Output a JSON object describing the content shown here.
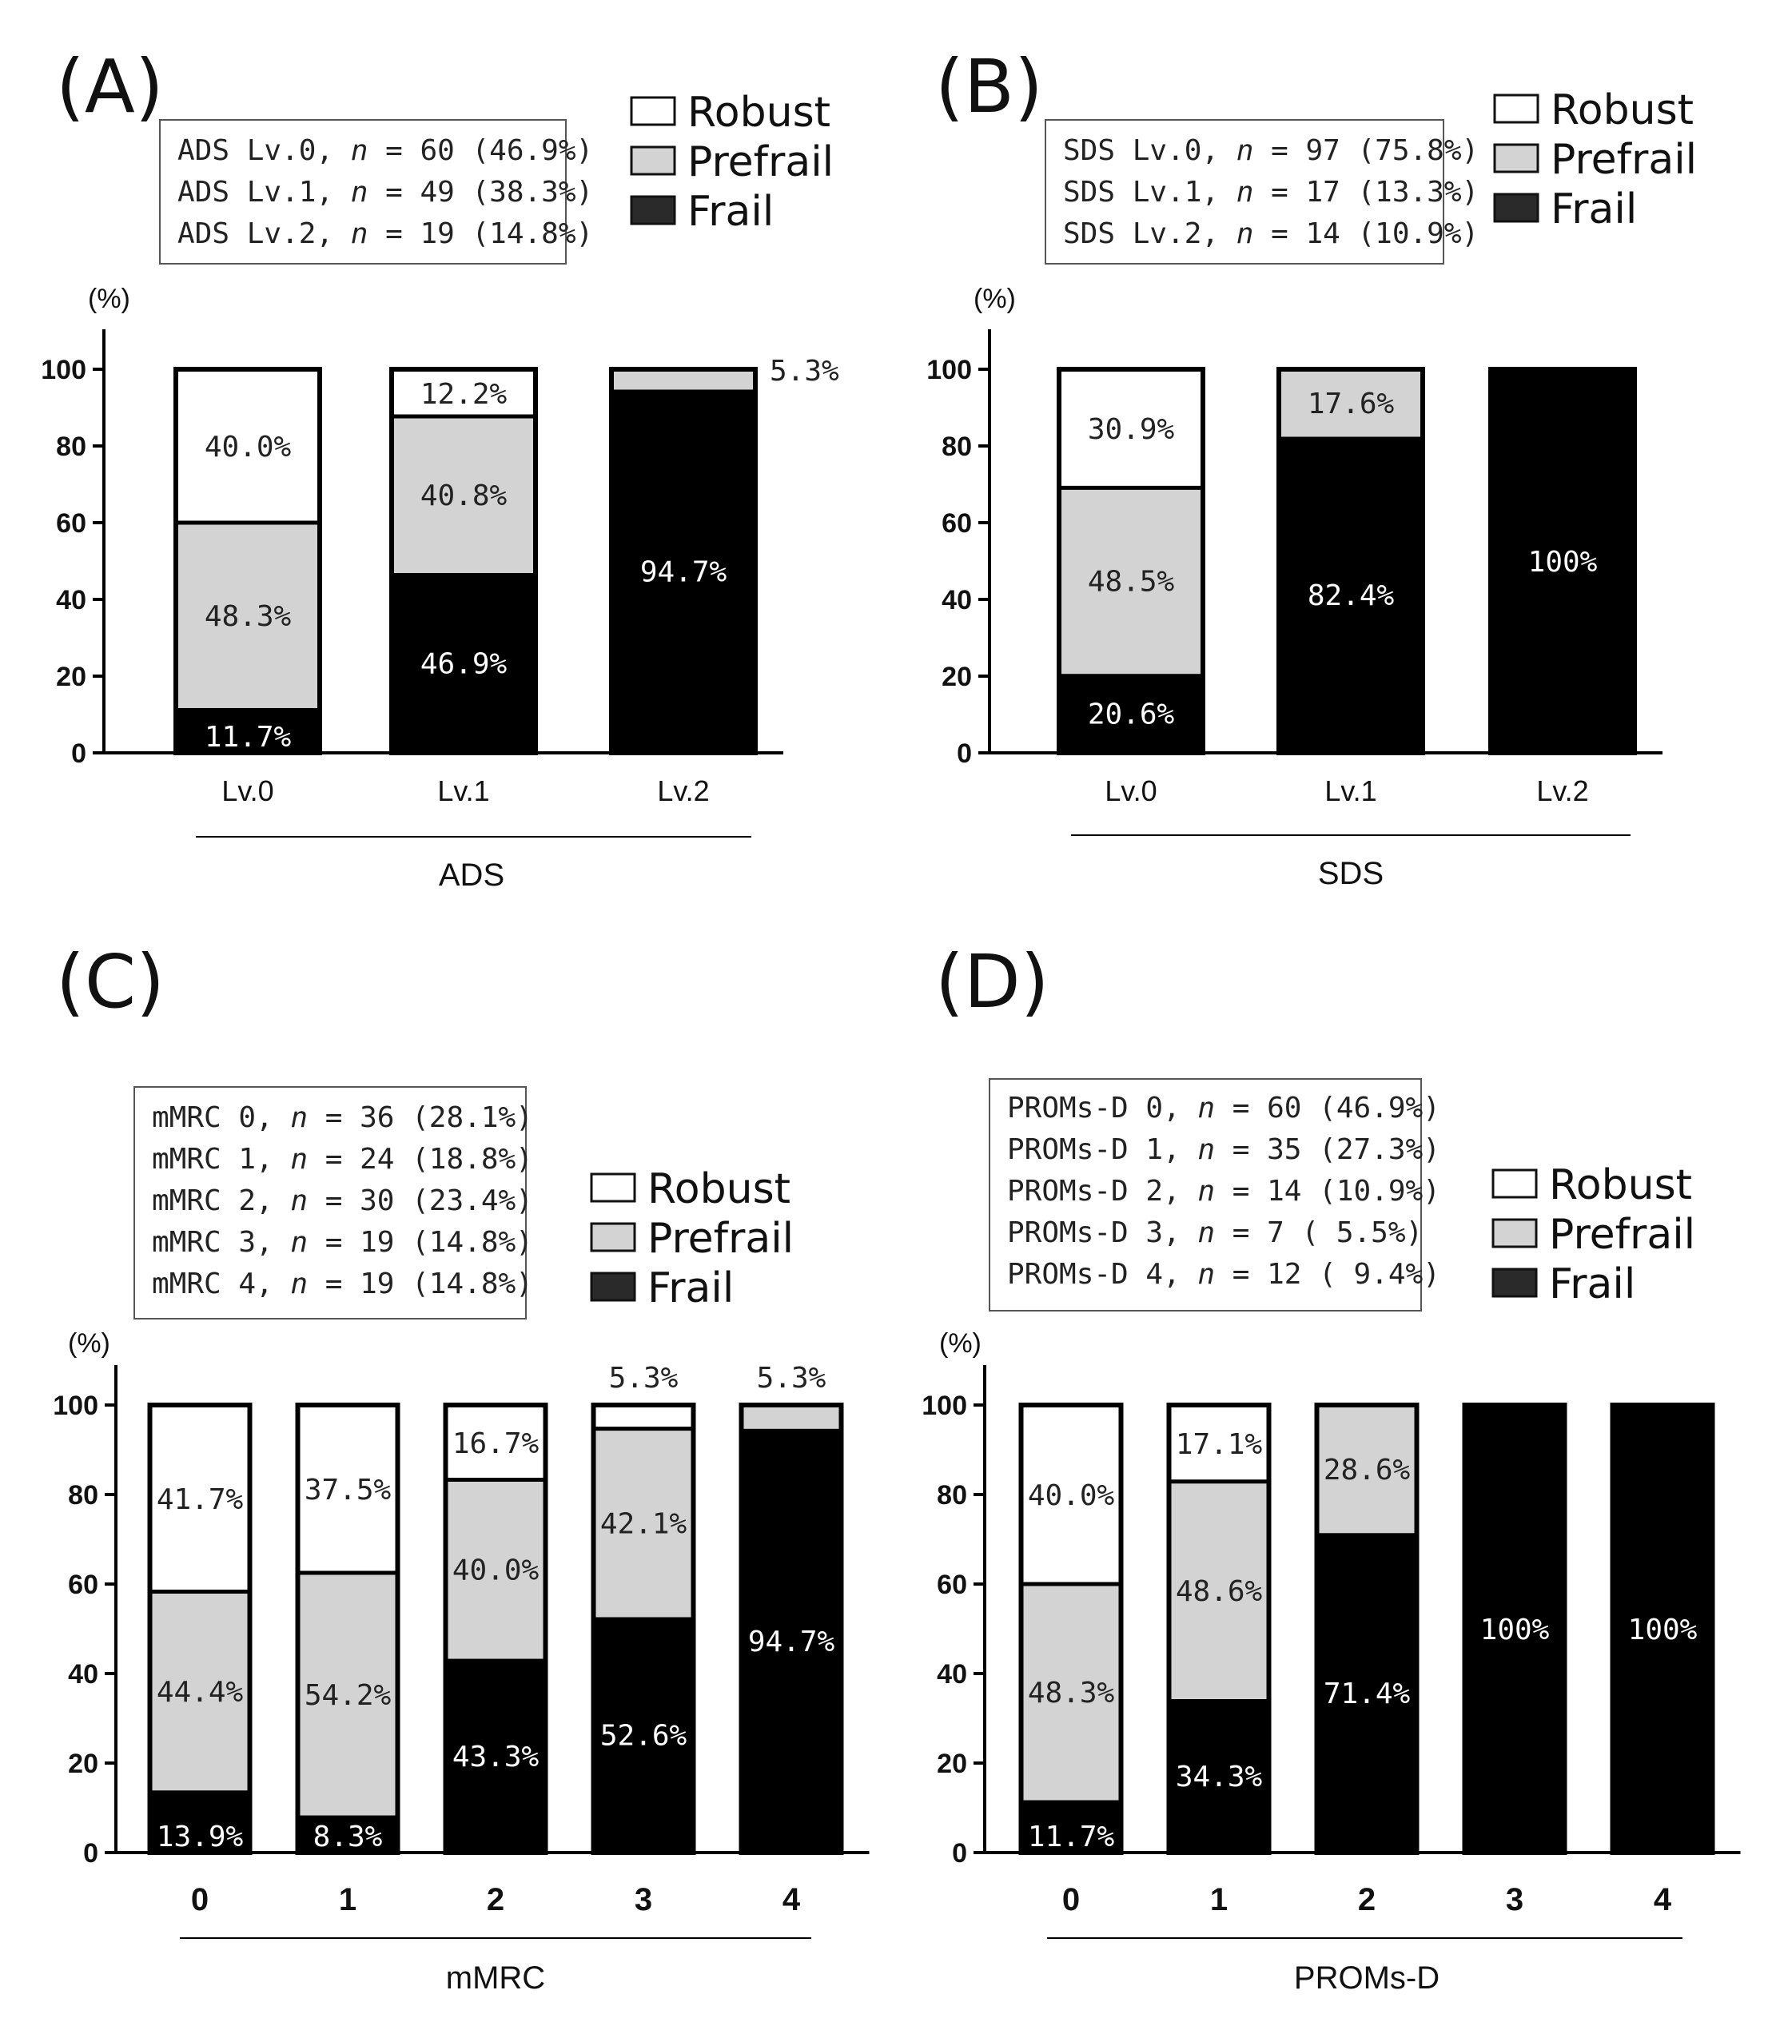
{
  "colors": {
    "robust": "#ffffff",
    "prefrail": "#d3d3d3",
    "frail": "#000000",
    "frame": "#000000"
  },
  "legend": {
    "robust": "Robust",
    "prefrail": "Prefrail",
    "frail": "Frail"
  },
  "y_unit": "(%)",
  "panels": [
    {
      "letter": "(A)",
      "info": [
        {
          "pre": "ADS Lv.0, ",
          "n": "n",
          "post": " = 60 (46.9%)"
        },
        {
          "pre": "ADS Lv.1, ",
          "n": "n",
          "post": " = 49 (38.3%)"
        },
        {
          "pre": "ADS Lv.2, ",
          "n": "n",
          "post": " = 19 (14.8%)"
        }
      ],
      "xlabel": "ADS"
    },
    {
      "letter": "(B)",
      "info": [
        {
          "pre": "SDS Lv.0, ",
          "n": "n",
          "post": " = 97 (75.8%)"
        },
        {
          "pre": "SDS Lv.1, ",
          "n": "n",
          "post": " = 17 (13.3%)"
        },
        {
          "pre": "SDS Lv.2, ",
          "n": "n",
          "post": " = 14 (10.9%)"
        }
      ],
      "xlabel": "SDS"
    },
    {
      "letter": "(C)",
      "info": [
        {
          "pre": "mMRC 0, ",
          "n": "n",
          "post": " = 36 (28.1%)"
        },
        {
          "pre": "mMRC 1, ",
          "n": "n",
          "post": " = 24 (18.8%)"
        },
        {
          "pre": "mMRC 2, ",
          "n": "n",
          "post": " = 30 (23.4%)"
        },
        {
          "pre": "mMRC 3, ",
          "n": "n",
          "post": " = 19 (14.8%)"
        },
        {
          "pre": "mMRC 4, ",
          "n": "n",
          "post": " = 19 (14.8%)"
        }
      ],
      "xlabel": "mMRC"
    },
    {
      "letter": "(D)",
      "info": [
        {
          "pre": "PROMs-D 0, ",
          "n": "n",
          "post": " = 60 (46.9%)"
        },
        {
          "pre": "PROMs-D 1, ",
          "n": "n",
          "post": " = 35 (27.3%)"
        },
        {
          "pre": "PROMs-D 2, ",
          "n": "n",
          "post": " = 14 (10.9%)"
        },
        {
          "pre": "PROMs-D 3, ",
          "n": "n",
          "post": " =  7 ( 5.5%)"
        },
        {
          "pre": "PROMs-D 4, ",
          "n": "n",
          "post": " = 12 ( 9.4%)"
        }
      ],
      "xlabel": "PROMs-D"
    }
  ],
  "chart_data": [
    {
      "type": "bar",
      "stacked": true,
      "title": "(A)",
      "xlabel": "ADS",
      "ylabel": "(%)",
      "ylim": [
        0,
        100
      ],
      "yticks": [
        0,
        20,
        40,
        60,
        80,
        100
      ],
      "categories": [
        "Lv.0",
        "Lv.1",
        "Lv.2"
      ],
      "series": [
        {
          "name": "Frail",
          "values": [
            11.7,
            46.9,
            94.7
          ],
          "labels": [
            "11.7%",
            "46.9%",
            "94.7%"
          ]
        },
        {
          "name": "Prefrail",
          "values": [
            48.3,
            40.8,
            5.3
          ],
          "labels": [
            "48.3%",
            "40.8%",
            "5.3%"
          ]
        },
        {
          "name": "Robust",
          "values": [
            40.0,
            12.2,
            0
          ],
          "labels": [
            "40.0%",
            "12.2%",
            ""
          ]
        }
      ]
    },
    {
      "type": "bar",
      "stacked": true,
      "title": "(B)",
      "xlabel": "SDS",
      "ylabel": "(%)",
      "ylim": [
        0,
        100
      ],
      "yticks": [
        0,
        20,
        40,
        60,
        80,
        100
      ],
      "categories": [
        "Lv.0",
        "Lv.1",
        "Lv.2"
      ],
      "series": [
        {
          "name": "Frail",
          "values": [
            20.6,
            82.4,
            100
          ],
          "labels": [
            "20.6%",
            "82.4%",
            "100%"
          ]
        },
        {
          "name": "Prefrail",
          "values": [
            48.5,
            17.6,
            0
          ],
          "labels": [
            "48.5%",
            "17.6%",
            ""
          ]
        },
        {
          "name": "Robust",
          "values": [
            30.9,
            0,
            0
          ],
          "labels": [
            "30.9%",
            "",
            ""
          ]
        }
      ]
    },
    {
      "type": "bar",
      "stacked": true,
      "title": "(C)",
      "xlabel": "mMRC",
      "ylabel": "(%)",
      "ylim": [
        0,
        100
      ],
      "yticks": [
        0,
        20,
        40,
        60,
        80,
        100
      ],
      "categories": [
        "0",
        "1",
        "2",
        "3",
        "4"
      ],
      "series": [
        {
          "name": "Frail",
          "values": [
            13.9,
            8.3,
            43.3,
            52.6,
            94.7
          ],
          "labels": [
            "13.9%",
            "8.3%",
            "43.3%",
            "52.6%",
            "94.7%"
          ]
        },
        {
          "name": "Prefrail",
          "values": [
            44.4,
            54.2,
            40.0,
            42.1,
            5.3
          ],
          "labels": [
            "44.4%",
            "54.2%",
            "40.0%",
            "42.1%",
            "5.3%"
          ]
        },
        {
          "name": "Robust",
          "values": [
            41.7,
            37.5,
            16.7,
            5.3,
            0
          ],
          "labels": [
            "41.7%",
            "37.5%",
            "16.7%",
            "5.3%",
            ""
          ]
        }
      ]
    },
    {
      "type": "bar",
      "stacked": true,
      "title": "(D)",
      "xlabel": "PROMs-D",
      "ylabel": "(%)",
      "ylim": [
        0,
        100
      ],
      "yticks": [
        0,
        20,
        40,
        60,
        80,
        100
      ],
      "categories": [
        "0",
        "1",
        "2",
        "3",
        "4"
      ],
      "series": [
        {
          "name": "Frail",
          "values": [
            11.7,
            34.3,
            71.4,
            100,
            100
          ],
          "labels": [
            "11.7%",
            "34.3%",
            "71.4%",
            "100%",
            "100%"
          ]
        },
        {
          "name": "Prefrail",
          "values": [
            48.3,
            48.6,
            28.6,
            0,
            0
          ],
          "labels": [
            "48.3%",
            "48.6%",
            "28.6%",
            "",
            ""
          ]
        },
        {
          "name": "Robust",
          "values": [
            40.0,
            17.1,
            0,
            0,
            0
          ],
          "labels": [
            "40.0%",
            "17.1%",
            "",
            "",
            ""
          ]
        }
      ]
    }
  ]
}
